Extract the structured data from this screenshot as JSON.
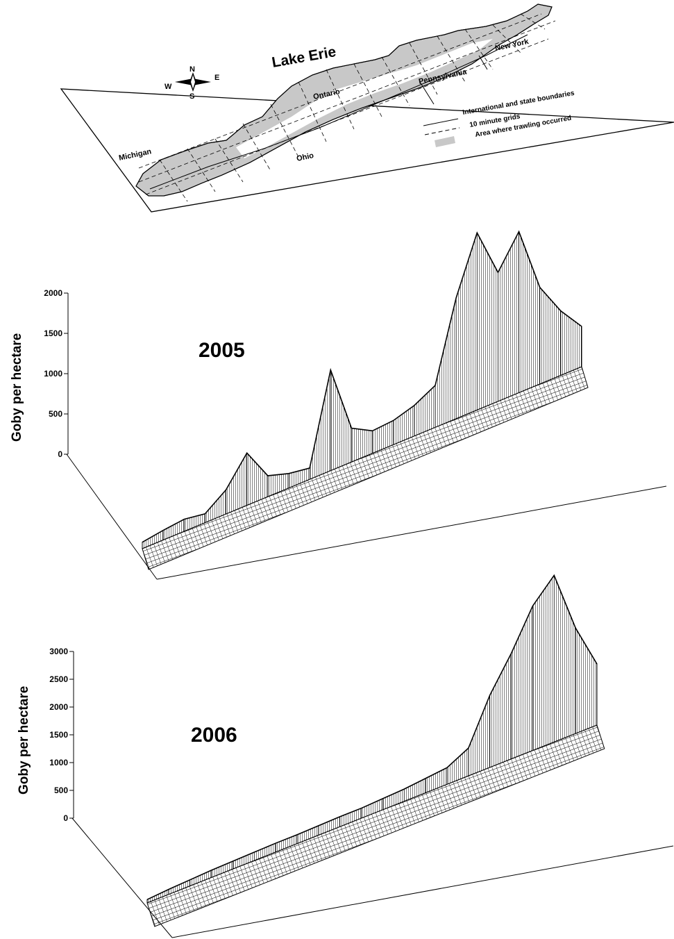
{
  "map": {
    "title": "Lake Erie",
    "compass": {
      "n": "N",
      "s": "S",
      "e": "E",
      "w": "W"
    },
    "places": {
      "michigan": "Michigan",
      "ontario": "Ontario",
      "ohio": "Ohio",
      "pennsylvania": "Pennsylvania",
      "new_york": "New York"
    },
    "legend": [
      {
        "symbol": "solid-line",
        "label": "International and state boundaries"
      },
      {
        "symbol": "dashed-line",
        "label": "10 minute grids"
      },
      {
        "symbol": "gray-swatch",
        "label": "Area where trawling occurred"
      }
    ],
    "colors": {
      "trawl_area": "#c8c8c8",
      "outline": "#000000"
    }
  },
  "chart_data": [
    {
      "type": "surface",
      "title": "2005",
      "ylabel": "Goby per hectare",
      "ylim": [
        0,
        2000
      ],
      "yticks": [
        "0",
        "500",
        "1000",
        "1500",
        "2000"
      ],
      "series": [
        {
          "values": [
            80,
            120,
            150,
            110,
            300,
            650,
            260,
            180,
            140,
            1250,
            420,
            280,
            300,
            380,
            520,
            1500,
            2200,
            1600,
            2000,
            1200,
            800,
            500
          ]
        }
      ]
    },
    {
      "type": "surface",
      "title": "2006",
      "ylabel": "Goby per hectare",
      "ylim": [
        0,
        3000
      ],
      "yticks": [
        "0",
        "500",
        "1000",
        "1500",
        "2000",
        "2500",
        "3000"
      ],
      "series": [
        {
          "values": [
            60,
            90,
            110,
            130,
            140,
            150,
            160,
            160,
            170,
            180,
            180,
            200,
            220,
            260,
            300,
            500,
            1300,
            1900,
            2600,
            3000,
            1900,
            1100
          ]
        }
      ]
    }
  ]
}
